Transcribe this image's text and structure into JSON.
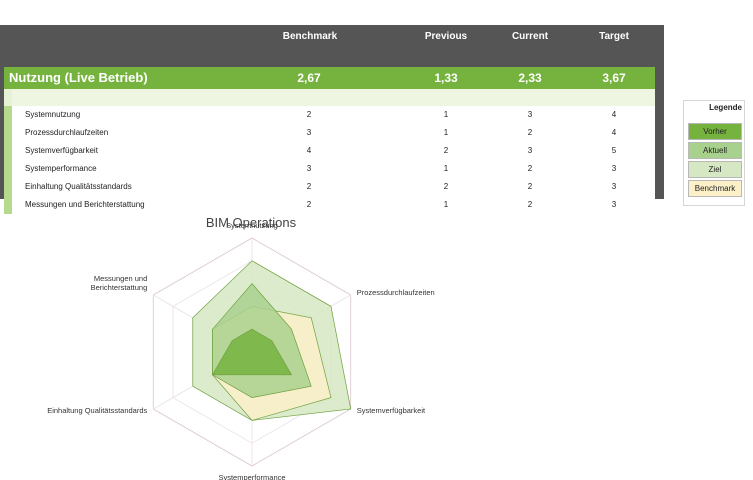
{
  "table": {
    "headers": [
      "Benchmark",
      "Previous",
      "Current",
      "Target"
    ],
    "section_title": "Nutzung (Live Betrieb)",
    "section_values": [
      "2,67",
      "1,33",
      "2,33",
      "3,67"
    ],
    "rows": [
      {
        "label": "Systemnutzung",
        "values": [
          "2",
          "1",
          "3",
          "4"
        ]
      },
      {
        "label": "Prozessdurchlaufzeiten",
        "values": [
          "3",
          "1",
          "2",
          "4"
        ]
      },
      {
        "label": "Systemverfügbarkeit",
        "values": [
          "4",
          "2",
          "3",
          "5"
        ]
      },
      {
        "label": "Systemperformance",
        "values": [
          "3",
          "1",
          "2",
          "3"
        ]
      },
      {
        "label": "Einhaltung Qualitätsstandards",
        "values": [
          "2",
          "2",
          "2",
          "3"
        ]
      },
      {
        "label": "Messungen und Berichterstattung",
        "values": [
          "2",
          "1",
          "2",
          "3"
        ]
      }
    ]
  },
  "legend": {
    "title": "Legende",
    "items": [
      {
        "label": "Vorher",
        "color": "#76b33e"
      },
      {
        "label": "Aktuell",
        "color": "#a9d18e"
      },
      {
        "label": "Ziel",
        "color": "#d5e8c3"
      },
      {
        "label": "Benchmark",
        "color": "#fbf0c8"
      }
    ]
  },
  "chart_data": {
    "type": "radar",
    "title": "BIM Operations",
    "axes": [
      "Systemnutzung",
      "Prozessdurchlaufzeiten",
      "Systemverfügbarkeit",
      "Systemperformance",
      "Einhaltung Qualitätsstandards",
      "Messungen und Berichterstattung"
    ],
    "axis_label_lines": [
      [
        "Systemnutzung"
      ],
      [
        "Prozessdurchlaufzeiten"
      ],
      [
        "Systemverfügbarkeit"
      ],
      [
        "Systemperformance"
      ],
      [
        "Einhaltung Qualitätsstandards"
      ],
      [
        "Messungen und",
        "Berichterstattung"
      ]
    ],
    "range": [
      0,
      5
    ],
    "series": [
      {
        "name": "Ziel",
        "values": [
          4,
          4,
          5,
          3,
          3,
          3
        ],
        "color": "#d5e8c3"
      },
      {
        "name": "Benchmark",
        "values": [
          2,
          3,
          4,
          3,
          2,
          2
        ],
        "color": "#fbf0c8"
      },
      {
        "name": "Aktuell",
        "values": [
          3,
          2,
          3,
          2,
          2,
          2
        ],
        "color": "#a9d18e"
      },
      {
        "name": "Vorher",
        "values": [
          1,
          1,
          2,
          1,
          2,
          1
        ],
        "color": "#76b33e"
      }
    ]
  }
}
